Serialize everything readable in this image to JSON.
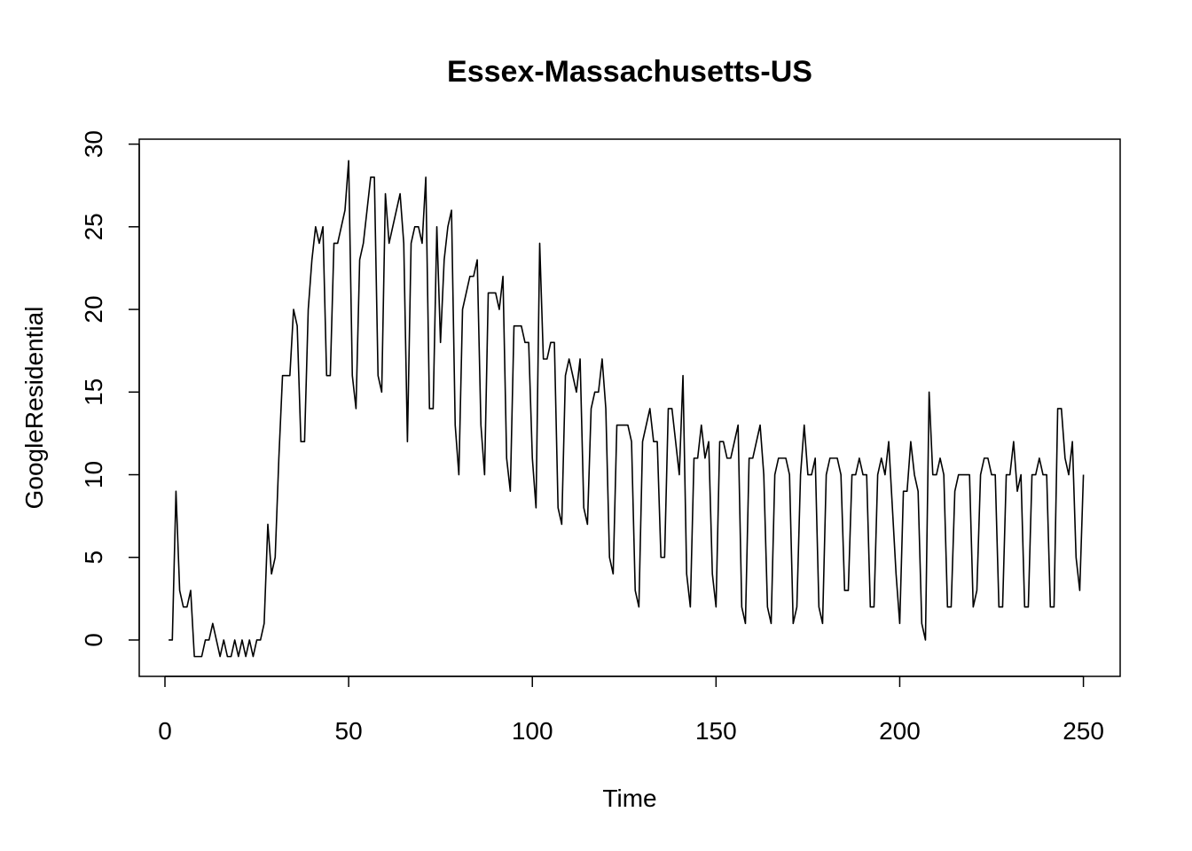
{
  "chart_data": {
    "type": "line",
    "title": "Essex-Massachusetts-US",
    "xlabel": "Time",
    "ylabel": "GoogleResidential",
    "xlim": [
      -7,
      260
    ],
    "ylim": [
      -2.2,
      30.3
    ],
    "xticks": [
      0,
      50,
      100,
      150,
      200,
      250
    ],
    "yticks": [
      0,
      5,
      10,
      15,
      20,
      25,
      30
    ],
    "grid": false,
    "series": [
      {
        "x_start": 1,
        "values": [
          0,
          0,
          9,
          3,
          2,
          2,
          3,
          -1,
          -1,
          -1,
          0,
          0,
          1,
          0,
          -1,
          0,
          -1,
          -1,
          0,
          -1,
          0,
          -1,
          0,
          -1,
          0,
          0,
          1,
          7,
          4,
          5,
          11,
          16,
          16,
          16,
          20,
          19,
          12,
          12,
          20,
          23,
          25,
          24,
          25,
          16,
          16,
          24,
          24,
          25,
          26,
          29,
          16,
          14,
          23,
          24,
          26,
          28,
          28,
          16,
          15,
          27,
          24,
          25,
          26,
          27,
          24,
          12,
          24,
          25,
          25,
          24,
          28,
          14,
          14,
          25,
          18,
          23,
          25,
          26,
          13,
          10,
          20,
          21,
          22,
          22,
          23,
          13,
          10,
          21,
          21,
          21,
          20,
          22,
          11,
          9,
          19,
          19,
          19,
          18,
          18,
          11,
          8,
          24,
          17,
          17,
          18,
          18,
          8,
          7,
          16,
          17,
          16,
          15,
          17,
          8,
          7,
          14,
          15,
          15,
          17,
          14,
          5,
          4,
          13,
          13,
          13,
          13,
          12,
          3,
          2,
          12,
          13,
          14,
          12,
          12,
          5,
          5,
          14,
          14,
          12,
          10,
          16,
          4,
          2,
          11,
          11,
          13,
          11,
          12,
          4,
          2,
          12,
          12,
          11,
          11,
          12,
          13,
          2,
          1,
          11,
          11,
          12,
          13,
          10,
          2,
          1,
          10,
          11,
          11,
          11,
          10,
          1,
          2,
          10,
          13,
          10,
          10,
          11,
          2,
          1,
          10,
          11,
          11,
          11,
          10,
          3,
          3,
          10,
          10,
          11,
          10,
          10,
          2,
          2,
          10,
          11,
          10,
          12,
          8,
          4,
          1,
          9,
          9,
          12,
          10,
          9,
          1,
          0,
          15,
          10,
          10,
          11,
          10,
          2,
          2,
          9,
          10,
          10,
          10,
          10,
          2,
          3,
          10,
          11,
          11,
          10,
          10,
          2,
          2,
          10,
          10,
          12,
          9,
          10,
          2,
          2,
          10,
          10,
          11,
          10,
          10,
          2,
          2,
          14,
          14,
          11,
          10,
          12,
          5,
          3,
          10
        ]
      }
    ]
  }
}
